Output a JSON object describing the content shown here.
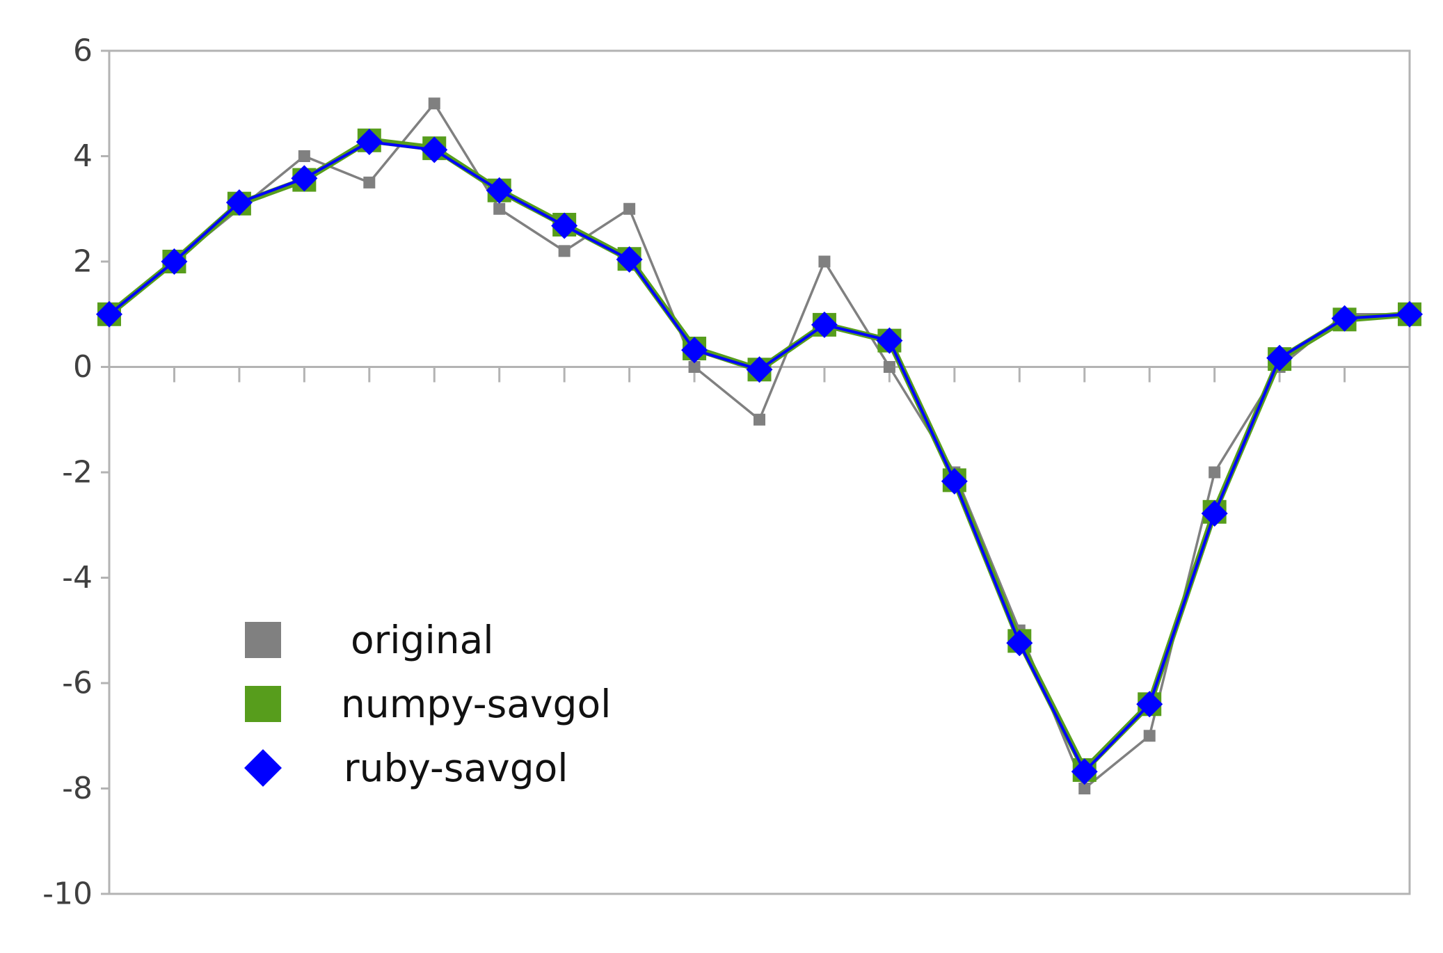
{
  "chart_data": {
    "type": "line",
    "title": "",
    "xlabel": "",
    "ylabel": "",
    "ylim": [
      -10,
      6
    ],
    "yticks": [
      6,
      4,
      2,
      0,
      -2,
      -4,
      -6,
      -8,
      -10
    ],
    "ytick_labels": [
      "6",
      "4",
      "2",
      "0",
      "-2",
      "-4",
      "-6",
      "-8",
      "-10"
    ],
    "x": [
      0,
      1,
      2,
      3,
      4,
      5,
      6,
      7,
      8,
      9,
      10,
      11,
      12,
      13,
      14,
      15,
      16,
      17,
      18,
      19,
      20
    ],
    "grid": false,
    "legend_position": "bottom-left",
    "series": [
      {
        "name": "original",
        "color": "#808080",
        "marker": "square",
        "values": [
          1,
          2,
          3,
          4,
          3.5,
          5,
          3,
          2.2,
          3,
          0,
          -1,
          2,
          0,
          -2,
          -5,
          -8,
          -7,
          -2,
          0,
          1,
          1
        ]
      },
      {
        "name": "numpy-savgol",
        "color": "#579d1c",
        "marker": "square",
        "values": [
          1,
          2,
          3.1,
          3.55,
          4.3,
          4.15,
          3.35,
          2.7,
          2.05,
          0.35,
          -0.05,
          0.8,
          0.5,
          -2.15,
          -5.2,
          -7.65,
          -6.4,
          -2.75,
          0.15,
          0.9,
          1
        ]
      },
      {
        "name": "ruby-savgol",
        "color": "#0000ff",
        "marker": "diamond",
        "values": [
          1,
          2,
          3.12,
          3.58,
          4.27,
          4.12,
          3.35,
          2.68,
          2.04,
          0.32,
          -0.05,
          0.8,
          0.5,
          -2.17,
          -5.24,
          -7.68,
          -6.4,
          -2.78,
          0.17,
          0.92,
          1
        ]
      }
    ]
  }
}
